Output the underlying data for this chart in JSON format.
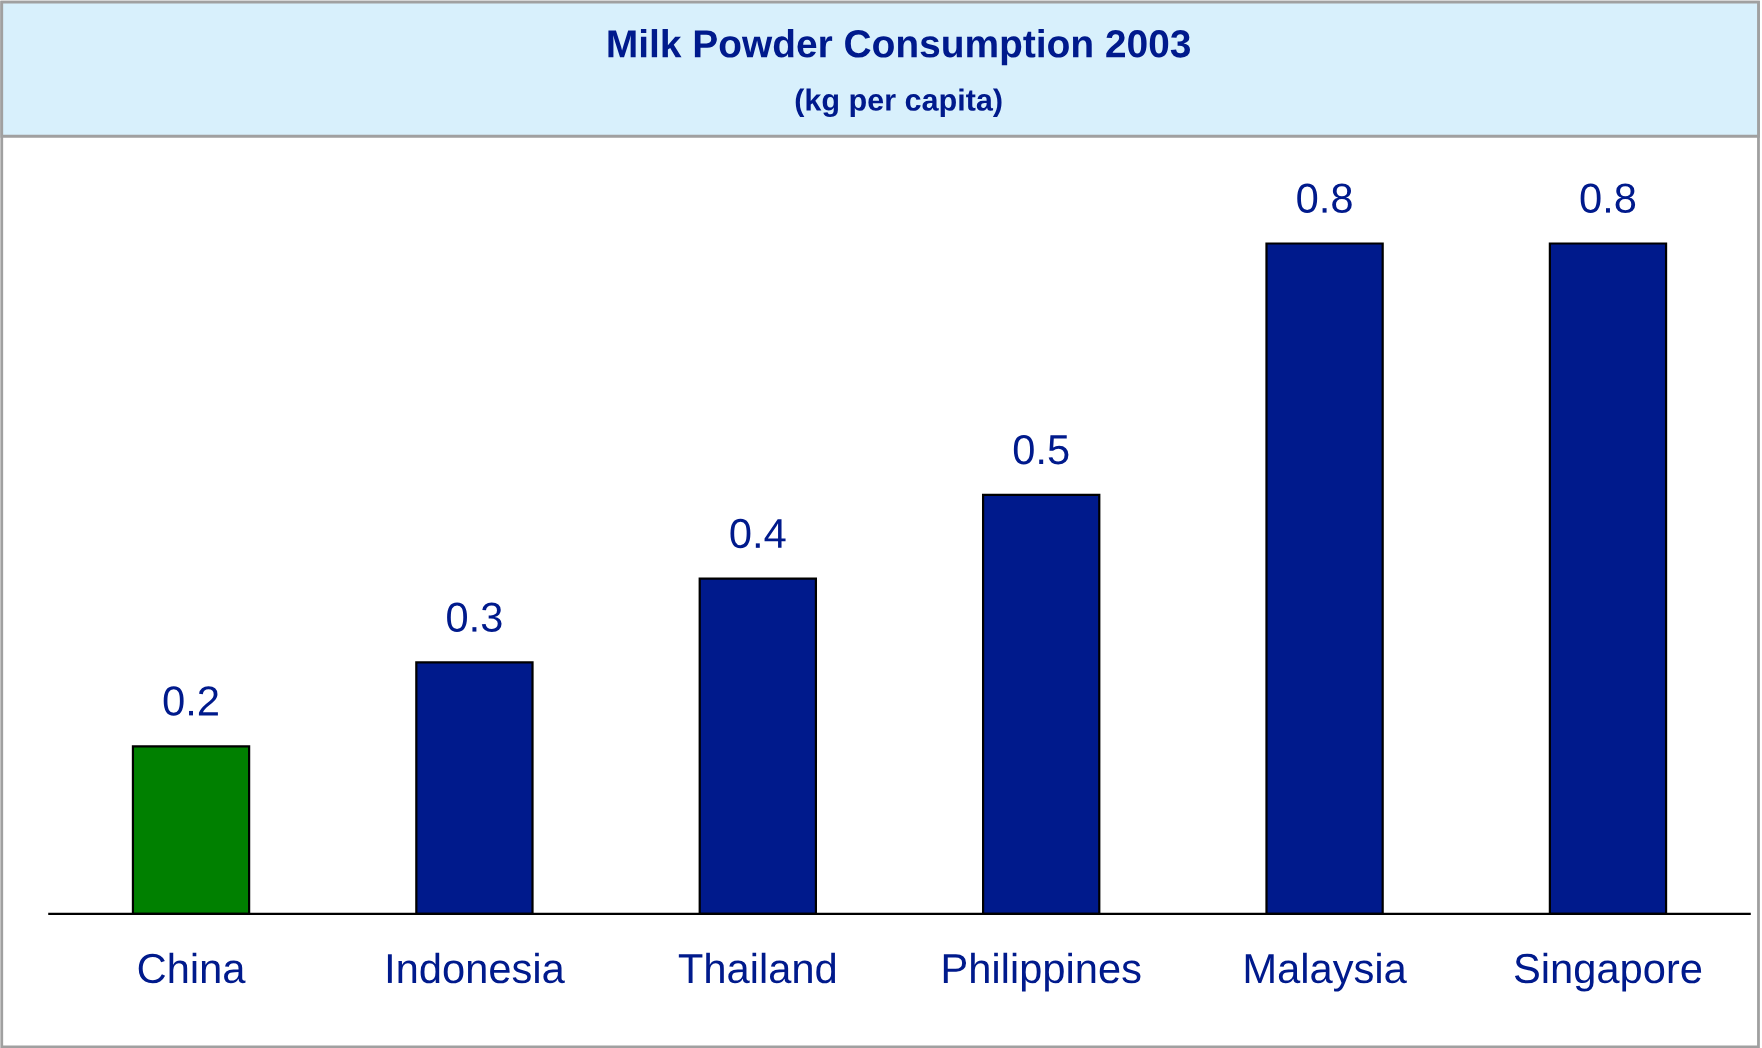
{
  "chart_data": {
    "type": "bar",
    "title": "Milk Powder Consumption 2003",
    "subtitle": "(kg per capita)",
    "categories": [
      "China",
      "Indonesia",
      "Thailand",
      "Philippines",
      "Malaysia",
      "Singapore"
    ],
    "values": [
      0.2,
      0.3,
      0.4,
      0.5,
      0.8,
      0.8
    ],
    "colors": [
      "#008000",
      "#001a8c",
      "#001a8c",
      "#001a8c",
      "#001a8c",
      "#001a8c"
    ],
    "data_labels": true,
    "grid": false,
    "legend": false,
    "tick_labels": "x"
  }
}
